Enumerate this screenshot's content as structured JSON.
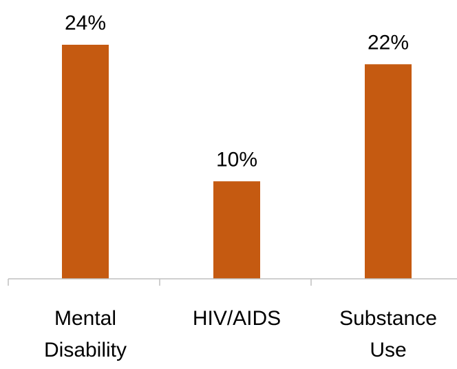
{
  "chart_data": {
    "type": "bar",
    "categories": [
      "Mental Disability",
      "HIV/AIDS",
      "Substance Use"
    ],
    "category_lines": [
      [
        "Mental",
        "Disability"
      ],
      [
        "HIV/AIDS"
      ],
      [
        "Substance",
        "Use"
      ]
    ],
    "values": [
      24,
      10,
      22
    ],
    "value_labels": [
      "24%",
      "10%",
      "22%"
    ],
    "title": "",
    "xlabel": "",
    "ylabel": "",
    "ylim": [
      0,
      24
    ],
    "grid": false,
    "legend": "none",
    "bar_color": "#C55A11",
    "axis_color": "#BFBFBF",
    "text_color": "#000000"
  }
}
